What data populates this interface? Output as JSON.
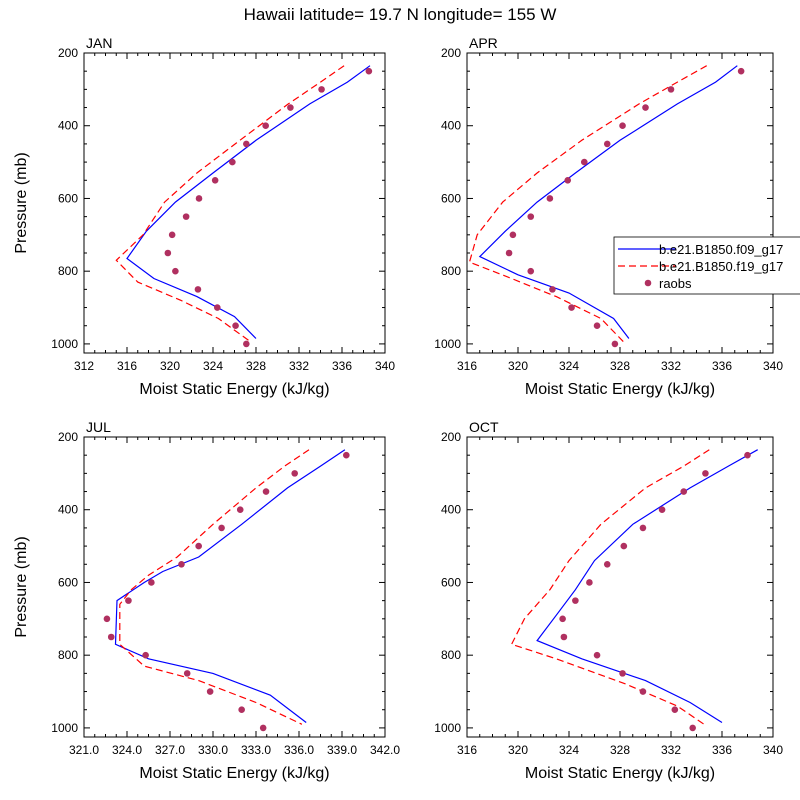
{
  "chart_data": {
    "title": "Hawaii  latitude= 19.7 N longitude= 155 W",
    "type": "line",
    "legend": {
      "position": "right",
      "entries": [
        {
          "label": "b.e21.B1850.f09_g17",
          "color": "#0000ff",
          "style": "solid"
        },
        {
          "label": "b.e21.B1850.f19_g17",
          "color": "#ff0000",
          "style": "dashed"
        },
        {
          "label": "raobs",
          "color": "#b03060",
          "style": "marker"
        }
      ]
    },
    "panels": [
      {
        "label": "JAN",
        "xlabel": "Moist Static Energy (kJ/kg)",
        "ylabel": "Pressure (mb)",
        "xlim": [
          312,
          340
        ],
        "ylim": [
          1025,
          200
        ],
        "xticks": [
          312,
          316,
          320,
          324,
          328,
          332,
          336,
          340
        ],
        "xtick_labels": [
          "312",
          "316",
          "320",
          "324",
          "328",
          "332",
          "336",
          "340"
        ],
        "yticks": [
          200,
          400,
          600,
          800,
          1000
        ],
        "ytick_labels": [
          "200",
          "400",
          "600",
          "800",
          "1000"
        ],
        "series": [
          {
            "name": "b.e21.B1850.f09_g17",
            "x": [
              338.6,
              336.5,
              333.0,
              328.0,
              324.0,
              320.5,
              317.8,
              316.0,
              318.5,
              322.5,
              326.0,
              328.0
            ],
            "y": [
              235,
              280,
              340,
              440,
              530,
              610,
              690,
              765,
              820,
              870,
              925,
              985
            ]
          },
          {
            "name": "b.e21.B1850.f19_g17",
            "x": [
              336.2,
              334.0,
              331.0,
              326.5,
              322.5,
              319.5,
              317.5,
              315.0,
              317.0,
              321.0,
              324.5,
              327.3
            ],
            "y": [
              235,
              280,
              340,
              440,
              530,
              610,
              700,
              770,
              830,
              880,
              930,
              990
            ]
          }
        ],
        "raobs": {
          "x": [
            338.5,
            334.1,
            331.2,
            328.9,
            327.1,
            325.8,
            324.2,
            322.7,
            321.5,
            320.2,
            319.8,
            320.5,
            322.6,
            324.4,
            326.1,
            327.1
          ],
          "y": [
            250,
            300,
            350,
            400,
            450,
            500,
            550,
            600,
            650,
            700,
            750,
            800,
            850,
            900,
            950,
            1000
          ]
        }
      },
      {
        "label": "APR",
        "xlabel": "Moist Static Energy (kJ/kg)",
        "ylabel": "",
        "xlim": [
          316,
          340
        ],
        "ylim": [
          1025,
          200
        ],
        "xticks": [
          316,
          320,
          324,
          328,
          332,
          336,
          340
        ],
        "xtick_labels": [
          "316",
          "320",
          "324",
          "328",
          "332",
          "336",
          "340"
        ],
        "yticks": [
          200,
          400,
          600,
          800,
          1000
        ],
        "ytick_labels": [
          "200",
          "400",
          "600",
          "800",
          "1000"
        ],
        "series": [
          {
            "name": "b.e21.B1850.f09_g17",
            "x": [
              337.2,
              335.5,
              332.5,
              328.0,
              324.5,
              321.5,
              319.0,
              317.0,
              320.0,
              324.0,
              327.5,
              328.7
            ],
            "y": [
              235,
              280,
              340,
              440,
              530,
              610,
              690,
              760,
              810,
              860,
              930,
              985
            ]
          },
          {
            "name": "b.e21.B1850.f19_g17",
            "x": [
              334.8,
              332.5,
              329.5,
              325.0,
              321.5,
              318.8,
              316.8,
              316.2,
              319.5,
              323.0,
              326.5,
              328.3
            ],
            "y": [
              235,
              280,
              340,
              440,
              530,
              610,
              700,
              775,
              820,
              870,
              930,
              995
            ]
          },
          {
            "name": "raobs",
            "x": [],
            "y": []
          }
        ],
        "raobs": {
          "x": [
            337.5,
            332.0,
            330.0,
            328.2,
            327.0,
            325.2,
            323.9,
            322.5,
            321.0,
            319.6,
            319.3,
            321.0,
            322.7,
            324.2,
            326.2,
            327.6
          ],
          "y": [
            250,
            300,
            350,
            400,
            450,
            500,
            550,
            600,
            650,
            700,
            750,
            800,
            850,
            900,
            950,
            1000
          ]
        }
      },
      {
        "label": "JUL",
        "xlabel": "Moist Static Energy (kJ/kg)",
        "ylabel": "Pressure (mb)",
        "xlim": [
          321,
          342
        ],
        "ylim": [
          1025,
          200
        ],
        "xticks": [
          321,
          324,
          327,
          330,
          333,
          336,
          339,
          342
        ],
        "xtick_labels": [
          "321.0",
          "324.0",
          "327.0",
          "330.0",
          "333.0",
          "336.0",
          "339.0",
          "342.0"
        ],
        "yticks": [
          200,
          400,
          600,
          800,
          1000
        ],
        "ytick_labels": [
          "200",
          "400",
          "600",
          "800",
          "1000"
        ],
        "series": [
          {
            "name": "b.e21.B1850.f09_g17",
            "x": [
              339.2,
              337.5,
              335.2,
              332.0,
              329.0,
              326.5,
              325.2,
              323.3,
              323.2,
              325.5,
              330.0,
              334.0,
              336.5
            ],
            "y": [
              235,
              280,
              340,
              440,
              530,
              570,
              600,
              650,
              770,
              810,
              850,
              910,
              985
            ]
          },
          {
            "name": "b.e21.B1850.f19_g17",
            "x": [
              336.7,
              335.0,
              333.0,
              330.0,
              327.5,
              325.5,
              324.3,
              323.5,
              323.5,
              325.2,
              329.0,
              333.0,
              336.2
            ],
            "y": [
              235,
              280,
              340,
              440,
              530,
              580,
              620,
              660,
              770,
              830,
              870,
              930,
              990
            ]
          }
        ],
        "raobs": {
          "x": [
            339.3,
            335.7,
            333.7,
            331.9,
            330.6,
            329.0,
            327.8,
            325.7,
            324.1,
            322.6,
            322.9,
            325.3,
            328.2,
            329.8,
            332.0,
            333.5
          ],
          "y": [
            250,
            300,
            350,
            400,
            450,
            500,
            550,
            600,
            650,
            700,
            750,
            800,
            850,
            900,
            950,
            1000
          ]
        }
      },
      {
        "label": "OCT",
        "xlabel": "Moist Static Energy (kJ/kg)",
        "ylabel": "",
        "xlim": [
          316,
          340
        ],
        "ylim": [
          1025,
          200
        ],
        "xticks": [
          316,
          320,
          324,
          328,
          332,
          336,
          340
        ],
        "xtick_labels": [
          "316",
          "320",
          "324",
          "328",
          "332",
          "336",
          "340"
        ],
        "yticks": [
          200,
          400,
          600,
          800,
          1000
        ],
        "ytick_labels": [
          "200",
          "400",
          "600",
          "800",
          "1000"
        ],
        "series": [
          {
            "name": "b.e21.B1850.f09_g17",
            "x": [
              338.8,
              336.5,
              333.5,
              329.0,
              326.0,
              324.5,
              323.0,
              321.5,
              325.0,
              330.0,
              333.5,
              336.0
            ],
            "y": [
              235,
              280,
              340,
              440,
              540,
              620,
              690,
              760,
              810,
              870,
              930,
              985
            ]
          },
          {
            "name": "b.e21.B1850.f19_g17",
            "x": [
              335.0,
              333.0,
              330.0,
              326.5,
              324.0,
              322.5,
              320.5,
              319.5,
              323.0,
              328.5,
              332.5,
              334.8
            ],
            "y": [
              235,
              280,
              340,
              440,
              540,
              620,
              700,
              770,
              810,
              880,
              940,
              995
            ]
          }
        ],
        "raobs": {
          "x": [
            338.0,
            334.7,
            333.0,
            331.3,
            329.8,
            328.3,
            327.0,
            325.6,
            324.5,
            323.5,
            323.6,
            326.2,
            328.2,
            329.8,
            332.3,
            333.7
          ],
          "y": [
            250,
            300,
            350,
            400,
            450,
            500,
            550,
            600,
            650,
            700,
            750,
            800,
            850,
            900,
            950,
            1000
          ]
        }
      }
    ]
  },
  "colors": {
    "model_1": "#0000ff",
    "model_2": "#ff0000",
    "raobs": "#b03060"
  }
}
